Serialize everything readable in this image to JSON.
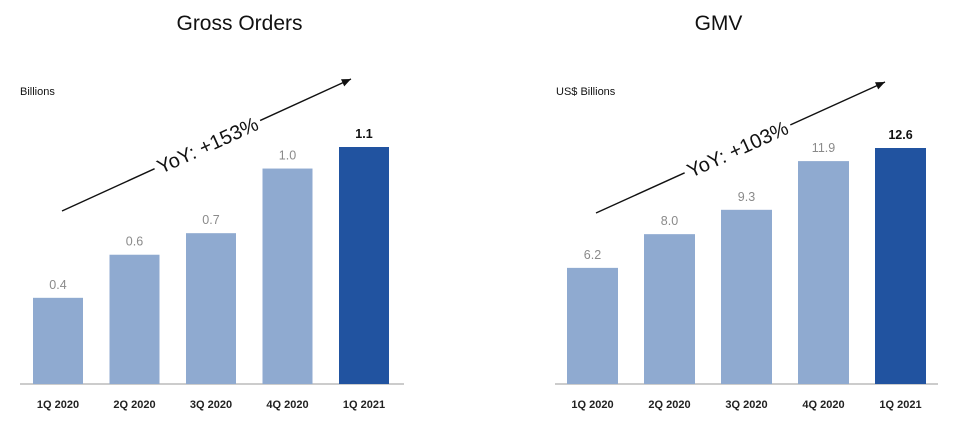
{
  "colors": {
    "bar": "#8faad0",
    "highlight": "#2153a0",
    "axis": "#999999",
    "arrow": "#111111"
  },
  "chart_data": [
    {
      "type": "bar",
      "title": "Gross Orders",
      "ylabel": "Billions",
      "categories": [
        "1Q 2020",
        "2Q 2020",
        "3Q 2020",
        "4Q 2020",
        "1Q 2021"
      ],
      "values": [
        0.4,
        0.6,
        0.7,
        1.0,
        1.1
      ],
      "value_labels": [
        "0.4",
        "0.6",
        "0.7",
        "1.0",
        "1.1"
      ],
      "highlight_index": 4,
      "annotation": "YoY: +153%",
      "ylim": [
        0,
        1.1
      ]
    },
    {
      "type": "bar",
      "title": "GMV",
      "ylabel": "US$ Billions",
      "categories": [
        "1Q 2020",
        "2Q 2020",
        "3Q 2020",
        "4Q 2020",
        "1Q 2021"
      ],
      "values": [
        6.2,
        8.0,
        9.3,
        11.9,
        12.6
      ],
      "value_labels": [
        "6.2",
        "8.0",
        "9.3",
        "11.9",
        "12.6"
      ],
      "highlight_index": 4,
      "annotation": "YoY: +103%",
      "ylim": [
        0,
        12.6
      ]
    }
  ]
}
